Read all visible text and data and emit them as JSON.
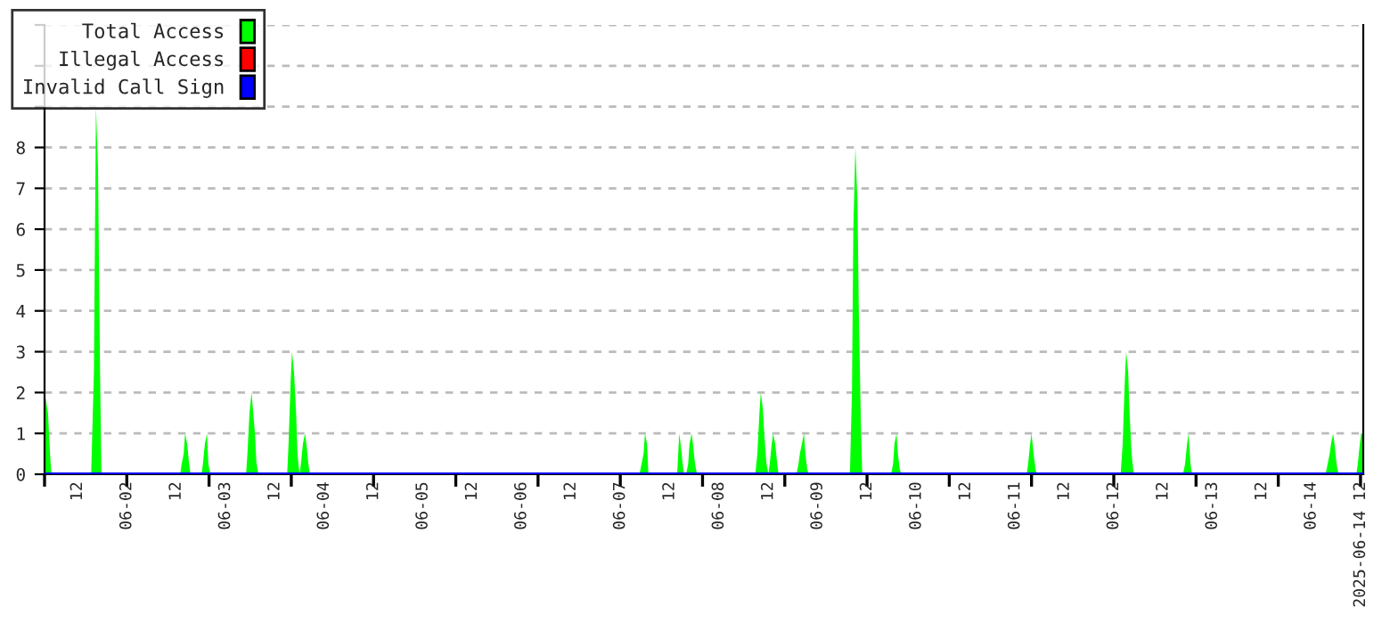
{
  "chart_data": {
    "type": "area",
    "xlim": [
      "2025-06-01T04:00",
      "2025-06-14T12:40"
    ],
    "ylim": [
      0,
      11
    ],
    "yticks": [
      0,
      1,
      2,
      3,
      4,
      5,
      6,
      7,
      8,
      {
        "value": 9,
        "label": null
      },
      {
        "value": 10,
        "label": null
      },
      {
        "value": 11,
        "label": null
      }
    ],
    "xticks": [
      {
        "value": "2025-06-01T12:00",
        "label": "12"
      },
      {
        "value": "2025-06-02T00:00",
        "label": "06-02"
      },
      {
        "value": "2025-06-02T12:00",
        "label": "12"
      },
      {
        "value": "2025-06-03T00:00",
        "label": "06-03"
      },
      {
        "value": "2025-06-03T12:00",
        "label": "12"
      },
      {
        "value": "2025-06-04T00:00",
        "label": "06-04"
      },
      {
        "value": "2025-06-04T12:00",
        "label": "12"
      },
      {
        "value": "2025-06-05T00:00",
        "label": "06-05"
      },
      {
        "value": "2025-06-05T12:00",
        "label": "12"
      },
      {
        "value": "2025-06-06T00:00",
        "label": "06-06"
      },
      {
        "value": "2025-06-06T12:00",
        "label": "12"
      },
      {
        "value": "2025-06-07T00:00",
        "label": "06-07"
      },
      {
        "value": "2025-06-07T12:00",
        "label": "12"
      },
      {
        "value": "2025-06-08T00:00",
        "label": "06-08"
      },
      {
        "value": "2025-06-08T12:00",
        "label": "12"
      },
      {
        "value": "2025-06-09T00:00",
        "label": "06-09"
      },
      {
        "value": "2025-06-09T12:00",
        "label": "12"
      },
      {
        "value": "2025-06-10T00:00",
        "label": "06-10"
      },
      {
        "value": "2025-06-10T12:00",
        "label": "12"
      },
      {
        "value": "2025-06-11T00:00",
        "label": "06-11"
      },
      {
        "value": "2025-06-11T12:00",
        "label": "12"
      },
      {
        "value": "2025-06-12T00:00",
        "label": "06-12"
      },
      {
        "value": "2025-06-12T12:00",
        "label": "12"
      },
      {
        "value": "2025-06-13T00:00",
        "label": "06-13"
      },
      {
        "value": "2025-06-13T12:00",
        "label": "12"
      },
      {
        "value": "2025-06-14T00:00",
        "label": "06-14"
      },
      {
        "value": "2025-06-14T12:00",
        "label": "2025-06-14 12"
      },
      {
        "value": "2025-06-01T04:00",
        "label": null
      },
      {
        "value": "2025-06-02T00:00",
        "label": null
      },
      {
        "value": "2025-06-02T20:00",
        "label": null
      },
      {
        "value": "2025-06-03T16:00",
        "label": null
      },
      {
        "value": "2025-06-04T12:00",
        "label": null
      },
      {
        "value": "2025-06-05T08:00",
        "label": null
      },
      {
        "value": "2025-06-06T04:00",
        "label": null
      },
      {
        "value": "2025-06-07T00:00",
        "label": null
      },
      {
        "value": "2025-06-07T20:00",
        "label": null
      },
      {
        "value": "2025-06-08T16:00",
        "label": null
      },
      {
        "value": "2025-06-09T12:00",
        "label": null
      },
      {
        "value": "2025-06-10T08:00",
        "label": null
      },
      {
        "value": "2025-06-11T04:00",
        "label": null
      },
      {
        "value": "2025-06-12T00:00",
        "label": null
      },
      {
        "value": "2025-06-12T20:00",
        "label": null
      },
      {
        "value": "2025-06-13T16:00",
        "label": null
      },
      {
        "value": "2025-06-14T12:00",
        "label": null
      }
    ],
    "grid": "y",
    "legend": "top left",
    "series": [
      {
        "name": "Total Access",
        "color": "#00ff00",
        "x": [
          "2025-06-01T04:00",
          "2025-06-01T04:50",
          "2025-06-01T05:20",
          "2025-06-01T05:40",
          "2025-06-01T15:20",
          "2025-06-01T16:00",
          "2025-06-01T16:30",
          "2025-06-01T17:00",
          "2025-06-01T17:30",
          "2025-06-01T17:50",
          "2025-06-02T13:00",
          "2025-06-02T13:20",
          "2025-06-02T13:50",
          "2025-06-02T14:10",
          "2025-06-02T14:40",
          "2025-06-02T15:10",
          "2025-06-02T15:30",
          "2025-06-02T18:10",
          "2025-06-02T18:30",
          "2025-06-02T19:00",
          "2025-06-02T19:30",
          "2025-06-02T19:50",
          "2025-06-02T20:20",
          "2025-06-03T05:00",
          "2025-06-03T05:20",
          "2025-06-03T05:50",
          "2025-06-03T06:20",
          "2025-06-03T06:40",
          "2025-06-03T07:10",
          "2025-06-03T07:30",
          "2025-06-03T08:00",
          "2025-06-03T15:00",
          "2025-06-03T15:20",
          "2025-06-03T15:50",
          "2025-06-03T16:10",
          "2025-06-03T16:40",
          "2025-06-03T17:10",
          "2025-06-03T17:30",
          "2025-06-03T18:00",
          "2025-06-03T18:20",
          "2025-06-03T18:50",
          "2025-06-03T19:20",
          "2025-06-03T19:40",
          "2025-06-03T20:10",
          "2025-06-03T20:30",
          "2025-06-07T04:40",
          "2025-06-07T05:10",
          "2025-06-07T05:40",
          "2025-06-07T06:00",
          "2025-06-07T06:30",
          "2025-06-07T06:50",
          "2025-06-07T13:50",
          "2025-06-07T14:20",
          "2025-06-07T14:40",
          "2025-06-07T15:10",
          "2025-06-07T15:30",
          "2025-06-07T16:00",
          "2025-06-07T16:30",
          "2025-06-07T16:50",
          "2025-06-07T17:20",
          "2025-06-07T17:40",
          "2025-06-07T18:10",
          "2025-06-07T18:40",
          "2025-06-08T08:50",
          "2025-06-08T09:20",
          "2025-06-08T09:50",
          "2025-06-08T10:10",
          "2025-06-08T10:40",
          "2025-06-08T11:00",
          "2025-06-08T11:30",
          "2025-06-08T12:00",
          "2025-06-08T12:20",
          "2025-06-08T12:50",
          "2025-06-08T13:10",
          "2025-06-08T13:40",
          "2025-06-08T14:10",
          "2025-06-08T14:30",
          "2025-06-08T18:50",
          "2025-06-08T19:20",
          "2025-06-08T19:40",
          "2025-06-08T20:10",
          "2025-06-08T20:40",
          "2025-06-08T21:00",
          "2025-06-08T21:30",
          "2025-06-08T21:50",
          "2025-06-09T07:50",
          "2025-06-09T08:20",
          "2025-06-09T08:40",
          "2025-06-09T09:10",
          "2025-06-09T09:40",
          "2025-06-09T10:00",
          "2025-06-09T10:30",
          "2025-06-09T10:50",
          "2025-06-09T17:50",
          "2025-06-09T18:20",
          "2025-06-09T18:40",
          "2025-06-09T19:10",
          "2025-06-09T19:30",
          "2025-06-09T20:00",
          "2025-06-09T20:30",
          "2025-06-11T02:50",
          "2025-06-11T03:10",
          "2025-06-11T03:40",
          "2025-06-11T04:00",
          "2025-06-11T04:30",
          "2025-06-11T05:00",
          "2025-06-11T05:20",
          "2025-06-12T01:40",
          "2025-06-12T02:10",
          "2025-06-12T02:40",
          "2025-06-12T03:00",
          "2025-06-12T03:30",
          "2025-06-12T03:50",
          "2025-06-12T04:20",
          "2025-06-12T04:50",
          "2025-06-12T16:50",
          "2025-06-12T17:20",
          "2025-06-12T17:50",
          "2025-06-12T18:10",
          "2025-06-12T18:40",
          "2025-06-12T19:00",
          "2025-06-14T03:30",
          "2025-06-14T04:00",
          "2025-06-14T04:30",
          "2025-06-14T04:50",
          "2025-06-14T05:20",
          "2025-06-14T05:40",
          "2025-06-14T06:10",
          "2025-06-14T06:40",
          "2025-06-14T11:00",
          "2025-06-14T11:20",
          "2025-06-14T11:50",
          "2025-06-14T12:10",
          "2025-06-14T12:40"
        ],
        "values": [
          2,
          1.5,
          0.5,
          0,
          0,
          2.5,
          9,
          7.5,
          2.5,
          0,
          0,
          0.25,
          0.5,
          1,
          0.75,
          0.25,
          0,
          0,
          0.25,
          0.75,
          1,
          0.25,
          0,
          0,
          0.5,
          1.5,
          2,
          1.6,
          1,
          0.3,
          0,
          0,
          0.75,
          2.25,
          3,
          2.5,
          1.5,
          0.5,
          0,
          0.25,
          0.75,
          1,
          0.75,
          0.25,
          0,
          0,
          0.25,
          0.5,
          1,
          0.75,
          0,
          0,
          1,
          0.75,
          0.25,
          0,
          0,
          0.25,
          0.75,
          1,
          0.75,
          0.25,
          0,
          0,
          0.5,
          1.5,
          2,
          1.6,
          1,
          0.3,
          0,
          0.25,
          0.75,
          1,
          0.75,
          0.25,
          0,
          0,
          0.25,
          0.5,
          0.75,
          1,
          0.5,
          0.1,
          0,
          0,
          2,
          6,
          8,
          6.7,
          4,
          1.3,
          0,
          0,
          0.25,
          0.75,
          1,
          0.5,
          0.1,
          0,
          0,
          0.25,
          0.75,
          1,
          0.5,
          0.1,
          0,
          0,
          0.75,
          2.25,
          3,
          2.5,
          1.5,
          0.5,
          0,
          0,
          0.25,
          0.75,
          1,
          0.25,
          0,
          0,
          0.25,
          0.5,
          0.75,
          1,
          0.75,
          0.25,
          0,
          0,
          0.25,
          0.75,
          1,
          1
        ]
      },
      {
        "name": "Illegal Access",
        "color": "#ff0000",
        "type": "line"
      },
      {
        "name": "Invalid Call Sign",
        "color": "#0000ff",
        "type": "line",
        "x": [
          "2025-06-01T04:00",
          "2025-06-14T12:40"
        ],
        "values": [
          0,
          0
        ]
      }
    ]
  }
}
